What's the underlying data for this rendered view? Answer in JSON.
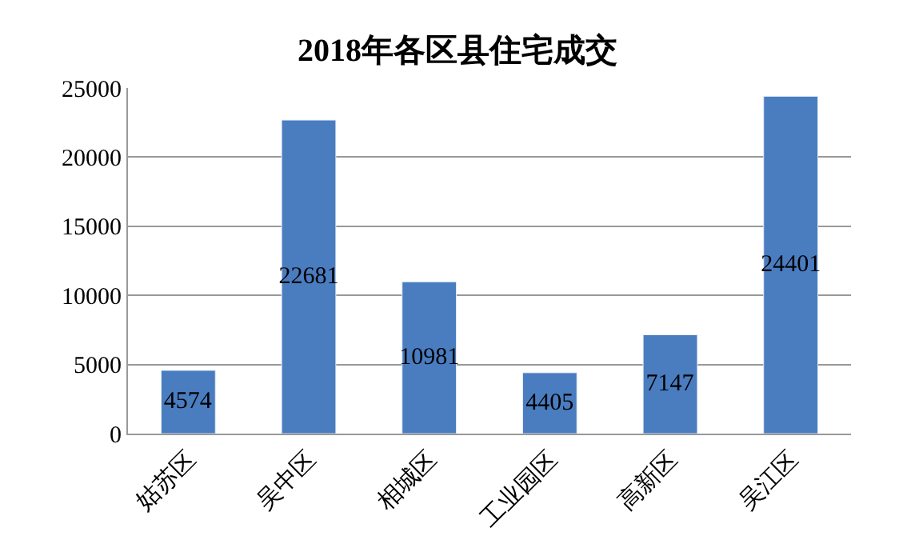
{
  "chart_data": {
    "type": "bar",
    "title": "2018年各区县住宅成交",
    "categories": [
      "姑苏区",
      "吴中区",
      "相城区",
      "工业园区",
      "高新区",
      "吴江区"
    ],
    "values": [
      4574,
      22681,
      10981,
      4405,
      7147,
      24401
    ],
    "color": "#4a7cc0",
    "ylim": [
      0,
      25000
    ],
    "yticks": [
      0,
      5000,
      10000,
      15000,
      20000,
      25000
    ],
    "grid": "y",
    "data_labels": true
  }
}
